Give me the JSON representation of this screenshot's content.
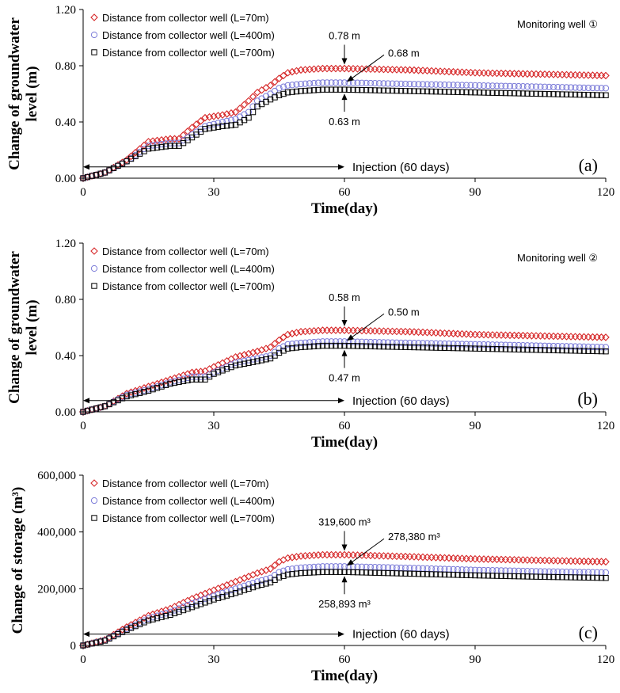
{
  "chart_data": [
    {
      "type": "scatter",
      "panel_label": "(a)",
      "note": "Monitoring well ①",
      "xlabel": "Time(day)",
      "ylabel_lines": [
        "Change of groundwater",
        "level (m)"
      ],
      "xlim": [
        0,
        120
      ],
      "ylim": [
        0,
        1.2
      ],
      "xticks": [
        "0",
        "30",
        "60",
        "90",
        "120"
      ],
      "yticks": [
        "0.00",
        "0.40",
        "0.80",
        "1.20"
      ],
      "legend": [
        "Distance from collector well (L=70m)",
        "Distance from collector well (L=400m)",
        "Distance from collector well (L=700m)"
      ],
      "series": [
        {
          "name": "Distance from collector well (L=70m)",
          "marker": "diamond",
          "color": "#d62728",
          "x": [
            0,
            5,
            10,
            15,
            20,
            22,
            25,
            28,
            32,
            35,
            38,
            40,
            43,
            45,
            47,
            50,
            55,
            60,
            75,
            90,
            105,
            120
          ],
          "y": [
            0,
            0.04,
            0.13,
            0.26,
            0.28,
            0.28,
            0.36,
            0.43,
            0.45,
            0.47,
            0.55,
            0.61,
            0.66,
            0.71,
            0.75,
            0.77,
            0.78,
            0.78,
            0.77,
            0.75,
            0.74,
            0.73
          ]
        },
        {
          "name": "Distance from collector well (L=400m)",
          "marker": "circle",
          "color": "#7b7bd8",
          "x": [
            0,
            5,
            10,
            15,
            20,
            22,
            25,
            28,
            32,
            35,
            38,
            40,
            43,
            45,
            47,
            50,
            55,
            60,
            75,
            90,
            105,
            120
          ],
          "y": [
            0,
            0.04,
            0.12,
            0.23,
            0.25,
            0.25,
            0.31,
            0.37,
            0.4,
            0.42,
            0.47,
            0.55,
            0.6,
            0.64,
            0.66,
            0.67,
            0.68,
            0.68,
            0.67,
            0.66,
            0.65,
            0.64
          ]
        },
        {
          "name": "Distance from collector well (L=700m)",
          "marker": "square",
          "color": "#000000",
          "x": [
            0,
            5,
            10,
            15,
            20,
            22,
            25,
            28,
            32,
            35,
            38,
            40,
            43,
            45,
            47,
            50,
            55,
            60,
            75,
            90,
            105,
            120
          ],
          "y": [
            0,
            0.04,
            0.12,
            0.21,
            0.23,
            0.23,
            0.29,
            0.35,
            0.37,
            0.38,
            0.43,
            0.51,
            0.56,
            0.59,
            0.61,
            0.62,
            0.63,
            0.63,
            0.62,
            0.61,
            0.6,
            0.59
          ]
        }
      ],
      "annotations": [
        {
          "text": "0.78 m",
          "x": 60,
          "y": 0.78,
          "dir": "down"
        },
        {
          "text": "0.68 m",
          "x": 60,
          "y": 0.68,
          "dir": "diag"
        },
        {
          "text": "0.63 m",
          "x": 60,
          "y": 0.63,
          "dir": "up"
        }
      ],
      "injection": {
        "text": "Injection (60 days)",
        "from": 0,
        "to": 60,
        "y": 0.08
      }
    },
    {
      "type": "scatter",
      "panel_label": "(b)",
      "note": "Monitoring well ②",
      "xlabel": "Time(day)",
      "ylabel_lines": [
        "Change of groundwater",
        "level (m)"
      ],
      "xlim": [
        0,
        120
      ],
      "ylim": [
        0,
        1.2
      ],
      "xticks": [
        "0",
        "30",
        "60",
        "90",
        "120"
      ],
      "yticks": [
        "0.00",
        "0.40",
        "0.80",
        "1.20"
      ],
      "legend": [
        "Distance from collector well (L=70m)",
        "Distance from collector well (L=400m)",
        "Distance from collector well (L=700m)"
      ],
      "series": [
        {
          "name": "Distance from collector well (L=70m)",
          "marker": "diamond",
          "color": "#d62728",
          "x": [
            0,
            5,
            10,
            15,
            20,
            25,
            28,
            30,
            35,
            40,
            43,
            45,
            47,
            50,
            55,
            60,
            75,
            90,
            105,
            120
          ],
          "y": [
            0,
            0.04,
            0.13,
            0.18,
            0.23,
            0.28,
            0.29,
            0.32,
            0.39,
            0.43,
            0.46,
            0.51,
            0.55,
            0.57,
            0.58,
            0.58,
            0.57,
            0.55,
            0.54,
            0.53
          ]
        },
        {
          "name": "Distance from collector well (L=400m)",
          "marker": "circle",
          "color": "#7b7bd8",
          "x": [
            0,
            5,
            10,
            15,
            20,
            25,
            28,
            30,
            35,
            40,
            43,
            45,
            47,
            50,
            55,
            60,
            75,
            90,
            105,
            120
          ],
          "y": [
            0,
            0.04,
            0.12,
            0.16,
            0.21,
            0.25,
            0.25,
            0.28,
            0.35,
            0.38,
            0.4,
            0.45,
            0.48,
            0.49,
            0.5,
            0.5,
            0.49,
            0.48,
            0.47,
            0.46
          ]
        },
        {
          "name": "Distance from collector well (L=700m)",
          "marker": "square",
          "color": "#000000",
          "x": [
            0,
            5,
            10,
            15,
            20,
            25,
            28,
            30,
            35,
            40,
            43,
            45,
            47,
            50,
            55,
            60,
            75,
            90,
            105,
            120
          ],
          "y": [
            0,
            0.04,
            0.11,
            0.15,
            0.2,
            0.23,
            0.23,
            0.27,
            0.33,
            0.36,
            0.38,
            0.42,
            0.45,
            0.46,
            0.47,
            0.47,
            0.46,
            0.45,
            0.44,
            0.43
          ]
        }
      ],
      "annotations": [
        {
          "text": "0.58 m",
          "x": 60,
          "y": 0.58,
          "dir": "down"
        },
        {
          "text": "0.50 m",
          "x": 60,
          "y": 0.5,
          "dir": "diag"
        },
        {
          "text": "0.47 m",
          "x": 60,
          "y": 0.47,
          "dir": "up"
        }
      ],
      "injection": {
        "text": "Injection (60 days)",
        "from": 0,
        "to": 60,
        "y": 0.08
      }
    },
    {
      "type": "scatter",
      "panel_label": "(c)",
      "note": "",
      "xlabel": "Time(day)",
      "ylabel_lines": [
        "Change of  storage (m³)"
      ],
      "xlim": [
        0,
        120
      ],
      "ylim": [
        0,
        600000
      ],
      "xticks": [
        "0",
        "30",
        "60",
        "90",
        "120"
      ],
      "yticks": [
        "0",
        "200,000",
        "400,000",
        "600,000"
      ],
      "legend": [
        "Distance from collector well (L=70m)",
        "Distance from collector well (L=400m)",
        "Distance from collector well (L=700m)"
      ],
      "series": [
        {
          "name": "Distance from collector well (L=70m)",
          "marker": "diamond",
          "color": "#d62728",
          "x": [
            0,
            5,
            10,
            15,
            20,
            25,
            30,
            35,
            40,
            43,
            45,
            47,
            50,
            55,
            60,
            75,
            90,
            105,
            120
          ],
          "y": [
            0,
            20000,
            65000,
            105000,
            130000,
            165000,
            195000,
            225000,
            255000,
            270000,
            295000,
            308000,
            315000,
            319600,
            319600,
            313000,
            305000,
            300000,
            295000
          ]
        },
        {
          "name": "Distance from collector well (L=400m)",
          "marker": "circle",
          "color": "#7b7bd8",
          "x": [
            0,
            5,
            10,
            15,
            20,
            25,
            30,
            35,
            40,
            43,
            45,
            47,
            50,
            55,
            60,
            75,
            90,
            105,
            120
          ],
          "y": [
            0,
            18000,
            58000,
            95000,
            118000,
            148000,
            175000,
            200000,
            225000,
            238000,
            258000,
            268000,
            274000,
            278380,
            278380,
            273000,
            266000,
            261000,
            257000
          ]
        },
        {
          "name": "Distance from collector well (L=700m)",
          "marker": "square",
          "color": "#000000",
          "x": [
            0,
            5,
            10,
            15,
            20,
            25,
            30,
            35,
            40,
            43,
            45,
            47,
            50,
            55,
            60,
            75,
            90,
            105,
            120
          ],
          "y": [
            0,
            17000,
            55000,
            88000,
            108000,
            135000,
            162000,
            185000,
            210000,
            222000,
            240000,
            250000,
            255000,
            258893,
            258893,
            253000,
            247000,
            242000,
            238000
          ]
        }
      ],
      "annotations": [
        {
          "text": "319,600 m³",
          "x": 60,
          "y": 319600,
          "dir": "down"
        },
        {
          "text": "278,380 m³",
          "x": 60,
          "y": 278380,
          "dir": "diag"
        },
        {
          "text": "258,893 m³",
          "x": 60,
          "y": 258893,
          "dir": "up"
        }
      ],
      "injection": {
        "text": "Injection (60 days)",
        "from": 0,
        "to": 60,
        "y": 40000
      }
    }
  ]
}
